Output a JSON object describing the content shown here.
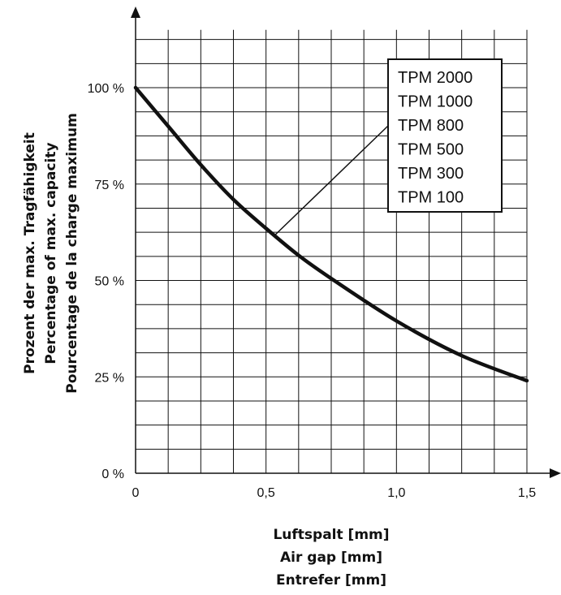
{
  "chart_data": {
    "type": "line",
    "x_ticks": [
      {
        "value": 0,
        "label": "0"
      },
      {
        "value": 0.5,
        "label": "0,5"
      },
      {
        "value": 1.0,
        "label": "1,0"
      },
      {
        "value": 1.5,
        "label": "1,5"
      }
    ],
    "y_ticks": [
      {
        "value": 0,
        "label": "0 %"
      },
      {
        "value": 25,
        "label": "25 %"
      },
      {
        "value": 50,
        "label": "50 %"
      },
      {
        "value": 75,
        "label": "75 %"
      },
      {
        "value": 100,
        "label": "100 %"
      }
    ],
    "xlim": [
      0,
      1.5
    ],
    "ylim": [
      0,
      115
    ],
    "x_grid_step": 0.125,
    "y_grid_step": 6.25,
    "grid": true,
    "xlabel": [
      "Luftspalt [mm]",
      "Air gap [mm]",
      "Entrefer [mm]"
    ],
    "ylabel": [
      "Prozent der max. Tragfähigkeit",
      "Percentage of max. capacity",
      "Pourcentage de la charge maximum"
    ],
    "series": [
      {
        "x": [
          0,
          0.125,
          0.25,
          0.375,
          0.5,
          0.625,
          0.75,
          1.0,
          1.25,
          1.5
        ],
        "y": [
          100,
          90,
          80,
          71,
          63.5,
          56.5,
          50.5,
          39.5,
          30.5,
          24
        ],
        "color": "#111111"
      }
    ],
    "legend": {
      "entries": [
        "TPM 2000",
        "TPM 1000",
        "TPM 800",
        "TPM 500",
        "TPM 300",
        "TPM 100"
      ],
      "placement": "top-right"
    },
    "annotation_point": {
      "x": 0.53,
      "y": 61.5
    }
  }
}
